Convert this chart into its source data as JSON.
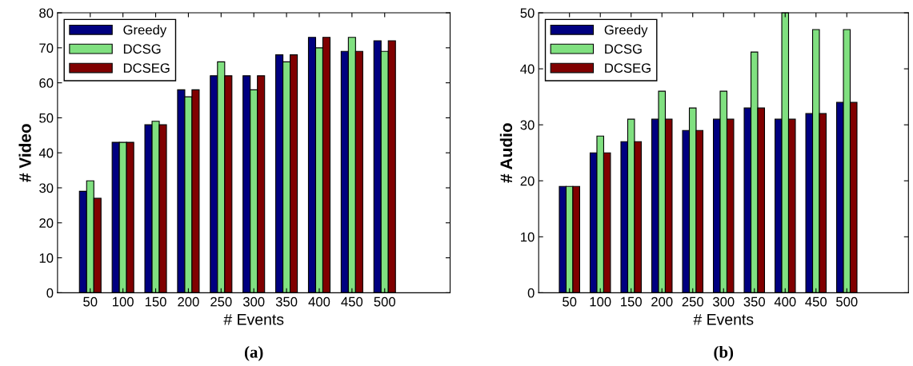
{
  "chart_data": [
    {
      "type": "bar",
      "xlabel": "# Events",
      "ylabel": "# Video",
      "categories": [
        "50",
        "100",
        "150",
        "200",
        "250",
        "300",
        "350",
        "400",
        "450",
        "500"
      ],
      "ylim": [
        0,
        80
      ],
      "yticks": [
        0,
        10,
        20,
        30,
        40,
        50,
        60,
        70,
        80
      ],
      "legend": "top left",
      "grid": false,
      "annotations": [
        "(a)"
      ],
      "series": [
        {
          "name": "Greedy",
          "color": "#000080",
          "values": [
            29,
            43,
            48,
            58,
            62,
            62,
            68,
            73,
            69,
            72
          ]
        },
        {
          "name": "DCSG",
          "color": "#80e080",
          "values": [
            32,
            43,
            49,
            56,
            66,
            58,
            66,
            70,
            73,
            69
          ]
        },
        {
          "name": "DCSEG",
          "color": "#800000",
          "values": [
            27,
            43,
            48,
            58,
            62,
            62,
            68,
            73,
            69,
            72
          ]
        }
      ]
    },
    {
      "type": "bar",
      "xlabel": "# Events",
      "ylabel": "# Audio",
      "categories": [
        "50",
        "100",
        "150",
        "200",
        "250",
        "300",
        "350",
        "400",
        "450",
        "500"
      ],
      "ylim": [
        0,
        50
      ],
      "yticks": [
        0,
        10,
        20,
        30,
        40,
        50
      ],
      "legend": "top left",
      "grid": false,
      "annotations": [
        "(b)"
      ],
      "series": [
        {
          "name": "Greedy",
          "color": "#000080",
          "values": [
            19,
            25,
            27,
            31,
            29,
            31,
            33,
            31,
            32,
            34
          ]
        },
        {
          "name": "DCSG",
          "color": "#80e080",
          "values": [
            19,
            28,
            31,
            36,
            33,
            36,
            43,
            50,
            47,
            47
          ]
        },
        {
          "name": "DCSEG",
          "color": "#800000",
          "values": [
            19,
            25,
            27,
            31,
            29,
            31,
            33,
            31,
            32,
            34
          ]
        }
      ]
    }
  ]
}
